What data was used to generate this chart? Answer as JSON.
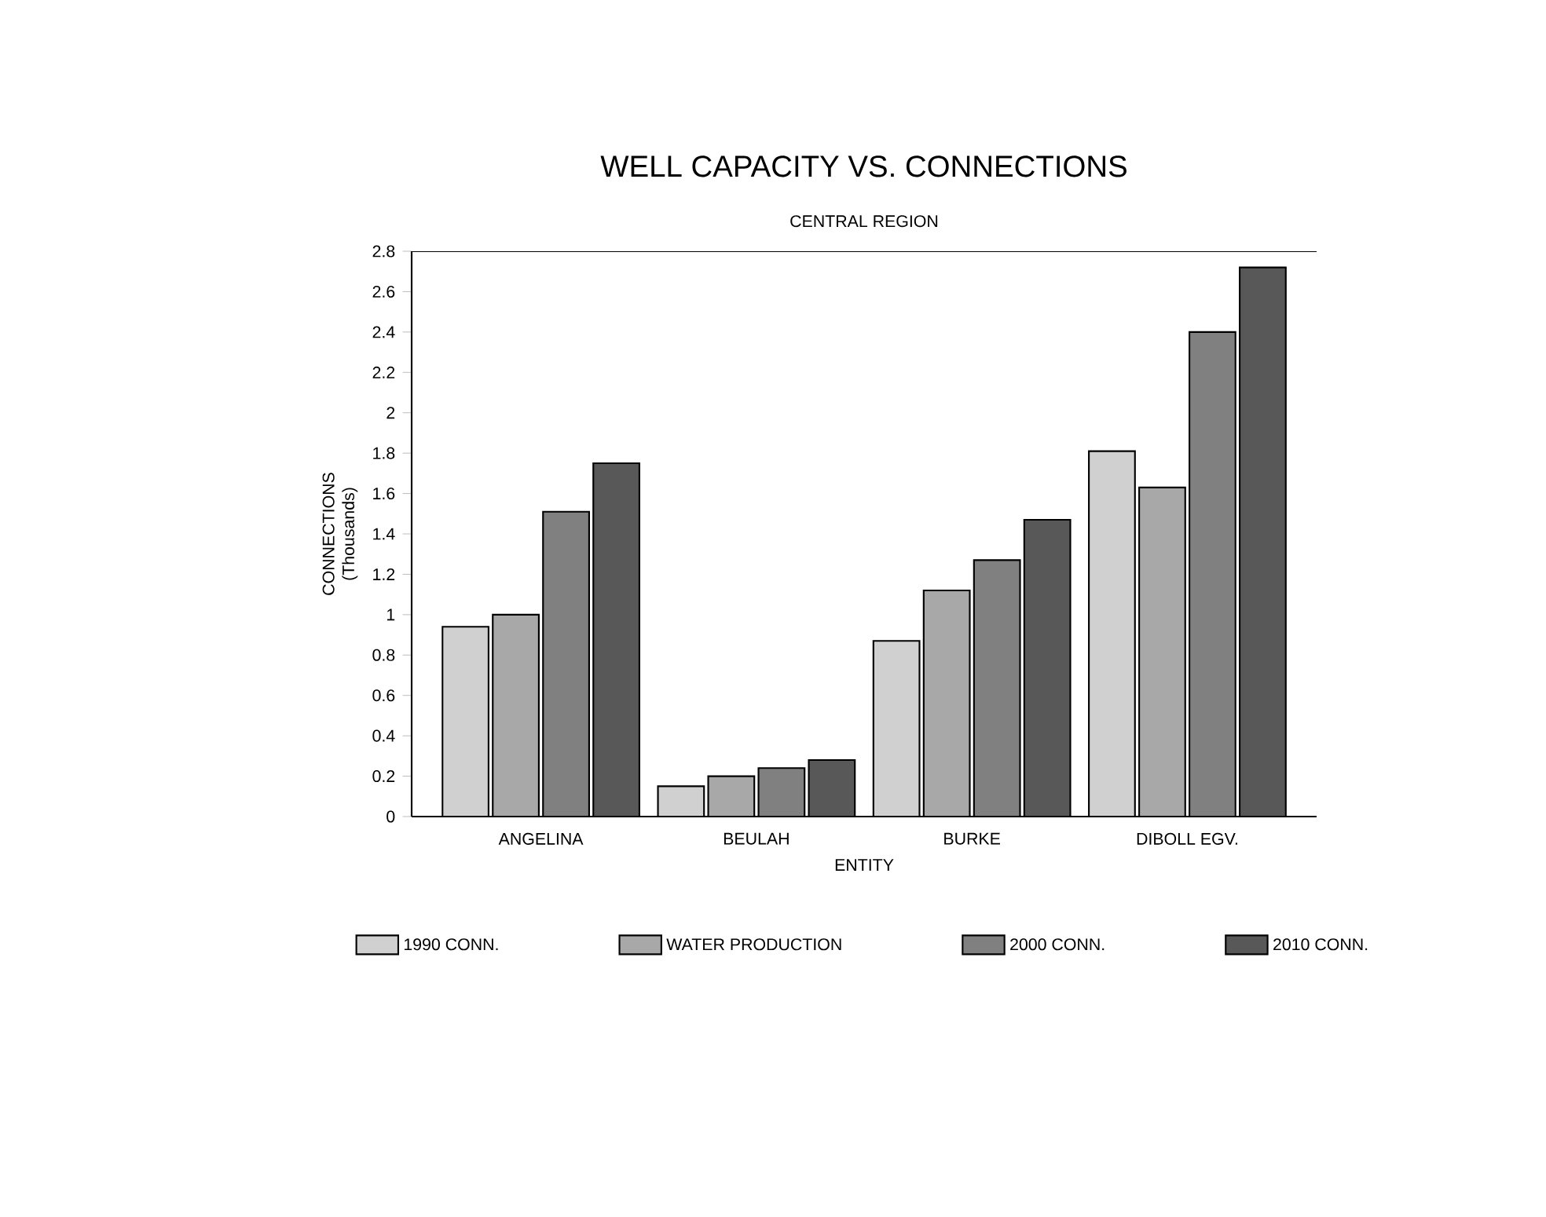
{
  "chart_data": {
    "type": "bar",
    "title": "WELL CAPACITY VS. CONNECTIONS",
    "subtitle": "CENTRAL REGION",
    "xlabel": "ENTITY",
    "ylabel": "CONNECTIONS (Thousands)",
    "categories": [
      "ANGELINA",
      "BEULAH",
      "BURKE",
      "DIBOLL EGV."
    ],
    "series": [
      {
        "name": "1990 CONN.",
        "color": "#d0d0d0",
        "values": [
          0.94,
          0.15,
          0.87,
          1.81
        ]
      },
      {
        "name": "WATER PRODUCTION",
        "color": "#a8a8a8",
        "values": [
          1.0,
          0.2,
          1.12,
          1.63
        ]
      },
      {
        "name": "2000 CONN.",
        "color": "#808080",
        "values": [
          1.51,
          0.24,
          1.27,
          2.4
        ]
      },
      {
        "name": "2010 CONN.",
        "color": "#585858",
        "values": [
          1.75,
          0.28,
          1.47,
          2.72
        ]
      }
    ],
    "ylim": [
      0,
      2.8
    ],
    "yticks": [
      0,
      0.2,
      0.4,
      0.6,
      0.8,
      1,
      1.2,
      1.4,
      1.6,
      1.8,
      2,
      2.2,
      2.4,
      2.6,
      2.8
    ],
    "legend": "bottom",
    "grid": false
  }
}
